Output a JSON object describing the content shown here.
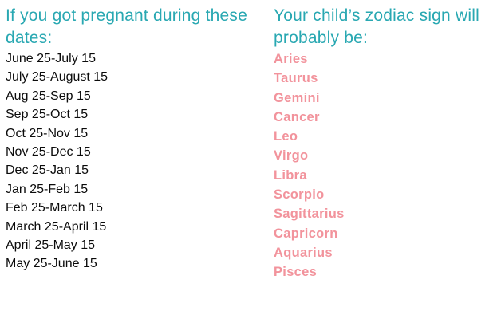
{
  "colors": {
    "teal": "#29a8b2",
    "pink": "#f2939c",
    "text": "#0b0b0b",
    "background": "#ffffff"
  },
  "left_column": {
    "heading": "If you got pregnant during these dates:",
    "dates": [
      "June 25-July 15",
      "July 25-August 15",
      "Aug 25-Sep 15",
      "Sep 25-Oct 15",
      "Oct 25-Nov 15",
      "Nov 25-Dec 15",
      "Dec 25-Jan 15",
      "Jan 25-Feb 15",
      "Feb 25-March 15",
      "March 25-April 15",
      "April 25-May 15",
      "May 25-June 15"
    ]
  },
  "right_column": {
    "heading": "Your child’s zodiac sign will probably be:",
    "signs": [
      "Aries",
      "Taurus",
      "Gemini",
      "Cancer",
      "Leo",
      "Virgo",
      "Libra",
      "Scorpio",
      "Sagittarius",
      "Capricorn",
      "Aquarius",
      "Pisces"
    ]
  }
}
